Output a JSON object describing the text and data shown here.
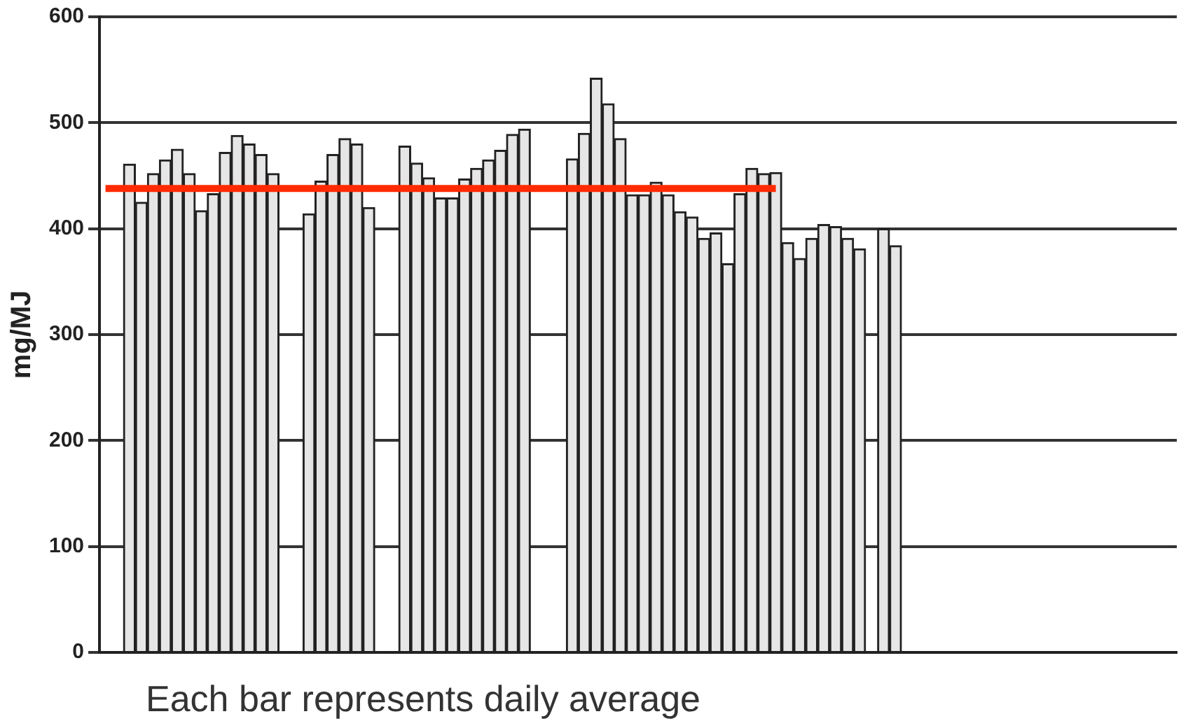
{
  "chart_data": {
    "type": "bar",
    "ylabel": "mg/MJ",
    "annotations": [
      "Each bar represents daily average"
    ],
    "categories": [
      null,
      null,
      null,
      null,
      null,
      null,
      null,
      null,
      null,
      null,
      null,
      null,
      null,
      null,
      null,
      null,
      null,
      null,
      null,
      null,
      null,
      null,
      null,
      null,
      null,
      null,
      null,
      null,
      null,
      null,
      null,
      null,
      null,
      null,
      null,
      null,
      null,
      null,
      null,
      null,
      null,
      null,
      null,
      null,
      null,
      null,
      null,
      null,
      null,
      null,
      null,
      null,
      null,
      null,
      null,
      null,
      null,
      null,
      null,
      null,
      null,
      null,
      null,
      null,
      null,
      null,
      null,
      null,
      null,
      null,
      null,
      null,
      null,
      null,
      null,
      null,
      null,
      null,
      null,
      null,
      null,
      null,
      null,
      null,
      null,
      null,
      null,
      null,
      null,
      null
    ],
    "series": [
      {
        "color": "#e6e6e6",
        "values": [
          null,
          null,
          461,
          425,
          452,
          465,
          475,
          452,
          417,
          433,
          472,
          488,
          480,
          470,
          452,
          null,
          null,
          414,
          445,
          470,
          485,
          480,
          420,
          null,
          null,
          478,
          462,
          448,
          429,
          429,
          447,
          457,
          465,
          474,
          489,
          494,
          null,
          null,
          null,
          466,
          490,
          542,
          518,
          485,
          432,
          432,
          444,
          432,
          416,
          411,
          391,
          396,
          367,
          433,
          457,
          452,
          453,
          387,
          372,
          391,
          404,
          402,
          391,
          381,
          null,
          400,
          384,
          null,
          null,
          null,
          null,
          null,
          null,
          null,
          null,
          null,
          null,
          null,
          null,
          null,
          null,
          null,
          null,
          null,
          null,
          null,
          null,
          null,
          null,
          null
        ]
      },
      {
        "type": "line",
        "color": "#ff2a00",
        "values": [
          438,
          438,
          438,
          438,
          438,
          438,
          438,
          438,
          438,
          438,
          438,
          438,
          438,
          438,
          438,
          438,
          438,
          438,
          438,
          438,
          438,
          438,
          438,
          438,
          438,
          438,
          438,
          438,
          438,
          438,
          438,
          438,
          438,
          438,
          438,
          438,
          438,
          438,
          438,
          438,
          438,
          438,
          438,
          438,
          438,
          438,
          438,
          438,
          438,
          438,
          438,
          438,
          438,
          438,
          438,
          438,
          438,
          null,
          null,
          null,
          null,
          null,
          null,
          null,
          null,
          null,
          null,
          null,
          null,
          null,
          null,
          null,
          null,
          null,
          null,
          null,
          null,
          null,
          null,
          null,
          null,
          null,
          null,
          null,
          null,
          null,
          null,
          null,
          null,
          null
        ]
      }
    ],
    "ylim": [
      0,
      600
    ],
    "yticks": [
      0,
      100,
      200,
      300,
      400,
      500,
      600
    ],
    "grid": "y",
    "tick_labels": "y",
    "marker": "none"
  }
}
